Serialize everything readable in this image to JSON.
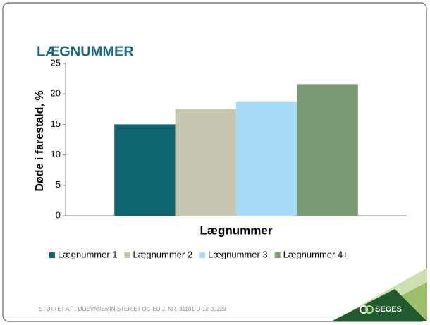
{
  "chart_data": {
    "type": "bar",
    "title": "LÆGNUMMER",
    "categories": [
      null
    ],
    "series": [
      {
        "name": "Lægnummer 1",
        "color": "#0e6570",
        "values": [
          15
        ]
      },
      {
        "name": "Lægnummer 2",
        "color": "#c7c6b0",
        "values": [
          17.5
        ]
      },
      {
        "name": "Lægnummer 3",
        "color": "#a6dcf5",
        "values": [
          18.8
        ]
      },
      {
        "name": "Lægnummer 4+",
        "color": "#7a9a74",
        "values": [
          21.6
        ]
      }
    ],
    "xlabel": "Lægnummer",
    "ylabel": "Døde i farestald, %",
    "ylim": [
      0,
      25
    ],
    "yticks": [
      0,
      5,
      10,
      15,
      20,
      25
    ],
    "grid": false,
    "legend": "bottom"
  },
  "footer": "STØTTET AF FØDEVAREMINISTERIET OG EU  J. NR. 31101-U-12-00229",
  "logo": "SEGES"
}
